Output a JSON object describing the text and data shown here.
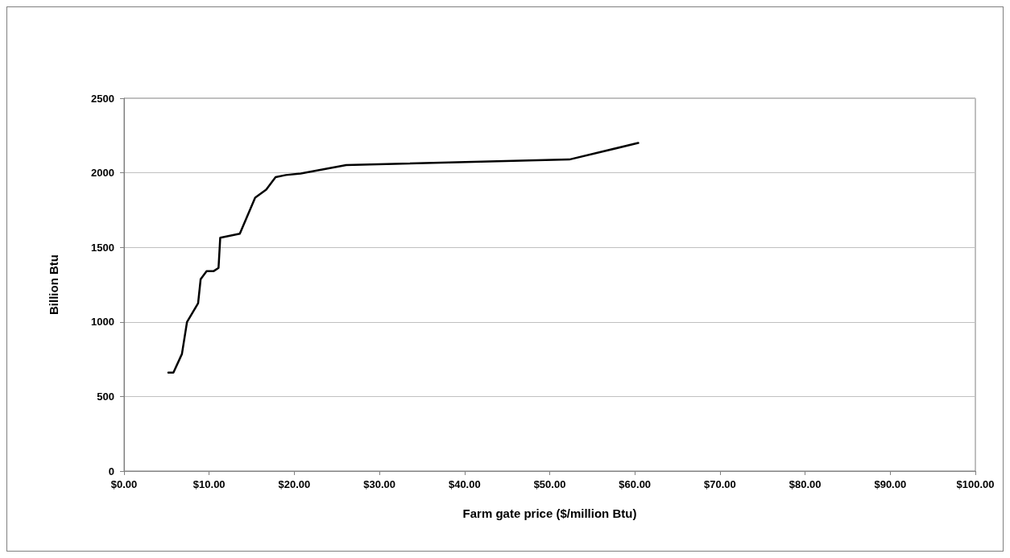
{
  "chart_data": {
    "type": "line",
    "xlabel": "Farm gate price ($/million Btu)",
    "ylabel": "Billion Btu",
    "x": [
      5.2,
      5.8,
      6.8,
      7.4,
      8.7,
      9.0,
      9.7,
      10.5,
      11.1,
      11.3,
      13.6,
      15.4,
      16.7,
      17.8,
      19.0,
      20.75,
      26.1,
      52.3,
      60.4
    ],
    "series": [
      {
        "color": "#000000",
        "values": [
          660,
          660,
          785,
          1000,
          1125,
          1287,
          1340,
          1340,
          1362,
          1565,
          1591,
          1833,
          1887,
          1971,
          1985,
          1995,
          2052,
          2089,
          2200
        ]
      }
    ],
    "xlim": [
      0,
      100
    ],
    "xticks": [
      {
        "value": 0,
        "label": "$0.00"
      },
      {
        "value": 10,
        "label": "$10.00"
      },
      {
        "value": 20,
        "label": "$20.00"
      },
      {
        "value": 30,
        "label": "$30.00"
      },
      {
        "value": 40,
        "label": "$40.00"
      },
      {
        "value": 50,
        "label": "$50.00"
      },
      {
        "value": 60,
        "label": "$60.00"
      },
      {
        "value": 70,
        "label": "$70.00"
      },
      {
        "value": 80,
        "label": "$80.00"
      },
      {
        "value": 90,
        "label": "$90.00"
      },
      {
        "value": 100,
        "label": "$100.00"
      }
    ],
    "ylim": [
      0,
      2500
    ],
    "yticks": [
      0,
      500,
      1000,
      1500,
      2000,
      2500
    ],
    "grid": "y",
    "marker": "none",
    "line_style": "solid"
  }
}
